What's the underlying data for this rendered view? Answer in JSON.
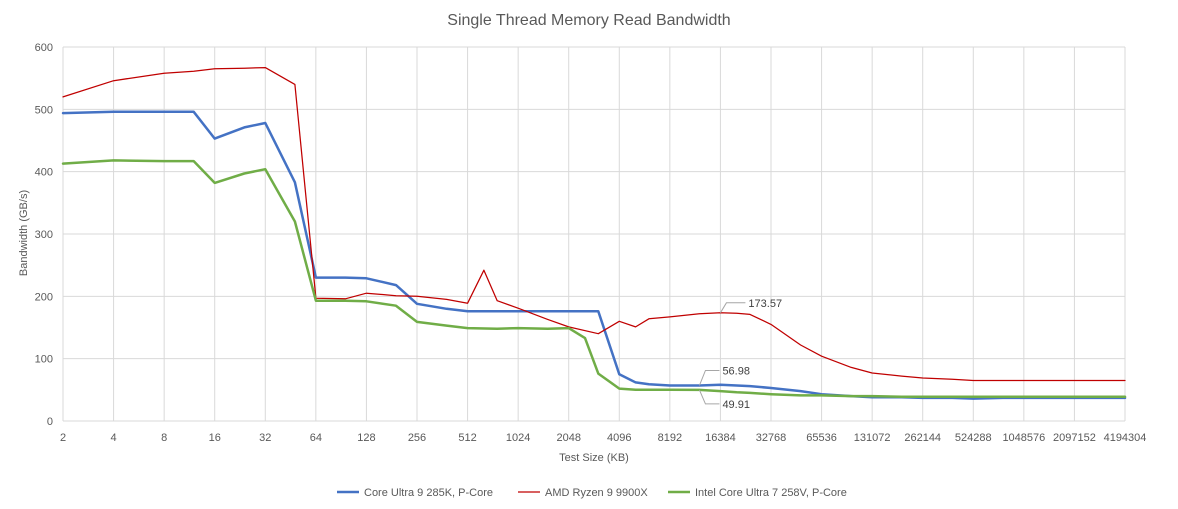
{
  "chart_data": {
    "type": "line",
    "title": "Single Thread Memory Read Bandwidth",
    "xlabel": "Test Size (KB)",
    "ylabel": "Bandwidth (GB/s)",
    "x_scale": "log2",
    "ylim": [
      0,
      600
    ],
    "yticks": [
      0,
      100,
      200,
      300,
      400,
      500,
      600
    ],
    "xticks": [
      "2",
      "4",
      "8",
      "16",
      "32",
      "64",
      "128",
      "256",
      "512",
      "1024",
      "2048",
      "4096",
      "8192",
      "16384",
      "32768",
      "65536",
      "131072",
      "262144",
      "524288",
      "1048576",
      "2097152",
      "4194304"
    ],
    "grid": true,
    "legend_position": "bottom",
    "series": [
      {
        "name": "Core Ultra 9 285K, P-Core",
        "color": "#4472c4",
        "x": [
          2,
          4,
          8,
          12,
          16,
          24,
          32,
          48,
          64,
          96,
          128,
          192,
          256,
          384,
          512,
          768,
          1024,
          1536,
          2048,
          3072,
          4096,
          5120,
          6144,
          8192,
          12288,
          16384,
          20480,
          24576,
          32768,
          49152,
          65536,
          98304,
          131072,
          196608,
          262144,
          393216,
          524288,
          786432,
          1048576,
          2097152,
          4194304
        ],
        "y": [
          494,
          496,
          496,
          496,
          453,
          471,
          478,
          383,
          230,
          230,
          229,
          218,
          188,
          180,
          176,
          176,
          176,
          176,
          176,
          176,
          75,
          62,
          59,
          57,
          57,
          58,
          57,
          56,
          53,
          48,
          43,
          40,
          38,
          38,
          37,
          37,
          36,
          37,
          37,
          37,
          37
        ]
      },
      {
        "name": "AMD Ryzen 9 9900X",
        "color": "#c00000",
        "x": [
          2,
          4,
          8,
          12,
          16,
          24,
          32,
          48,
          64,
          96,
          128,
          192,
          256,
          384,
          512,
          640,
          768,
          1024,
          1536,
          2048,
          3072,
          4096,
          5120,
          6144,
          8192,
          12288,
          16384,
          20480,
          24576,
          32768,
          49152,
          65536,
          98304,
          131072,
          196608,
          262144,
          393216,
          524288,
          786432,
          1048576,
          2097152,
          4194304
        ],
        "y": [
          520,
          546,
          558,
          561,
          565,
          566,
          567,
          540,
          197,
          196,
          205,
          201,
          200,
          195,
          189,
          242,
          193,
          181,
          163,
          151,
          140,
          160,
          151,
          164,
          167,
          172,
          173.57,
          173,
          171,
          155,
          122,
          104,
          86,
          77,
          72,
          69,
          67,
          65,
          65,
          65,
          65,
          65
        ]
      },
      {
        "name": "Intel Core Ultra 7 258V, P-Core",
        "color": "#70ad47",
        "x": [
          2,
          4,
          8,
          12,
          16,
          24,
          32,
          48,
          64,
          96,
          128,
          192,
          256,
          384,
          512,
          768,
          1024,
          1536,
          2048,
          2560,
          3072,
          4096,
          5120,
          6144,
          8192,
          12288,
          16384,
          20480,
          24576,
          32768,
          49152,
          65536,
          98304,
          131072,
          196608,
          262144,
          393216,
          524288,
          786432,
          1048576,
          2097152,
          4194304
        ],
        "y": [
          413,
          418,
          417,
          417,
          382,
          397,
          404,
          320,
          193,
          193,
          192,
          185,
          159,
          153,
          149,
          148,
          149,
          148,
          149,
          133,
          76,
          52,
          50,
          50,
          50,
          49.91,
          48,
          46,
          45,
          43,
          41,
          41,
          40,
          40,
          39,
          39,
          39,
          39,
          39,
          39,
          39,
          39
        ]
      }
    ],
    "annotations": [
      {
        "text": "173.57",
        "x": 16384,
        "y": 173.57,
        "series": "AMD Ryzen 9 9900X"
      },
      {
        "text": "56.98",
        "x": 12288,
        "y": 56.98,
        "series": "Core Ultra 9 285K, P-Core"
      },
      {
        "text": "49.91",
        "x": 12288,
        "y": 49.91,
        "series": "Intel Core Ultra 7 258V, P-Core"
      }
    ]
  }
}
